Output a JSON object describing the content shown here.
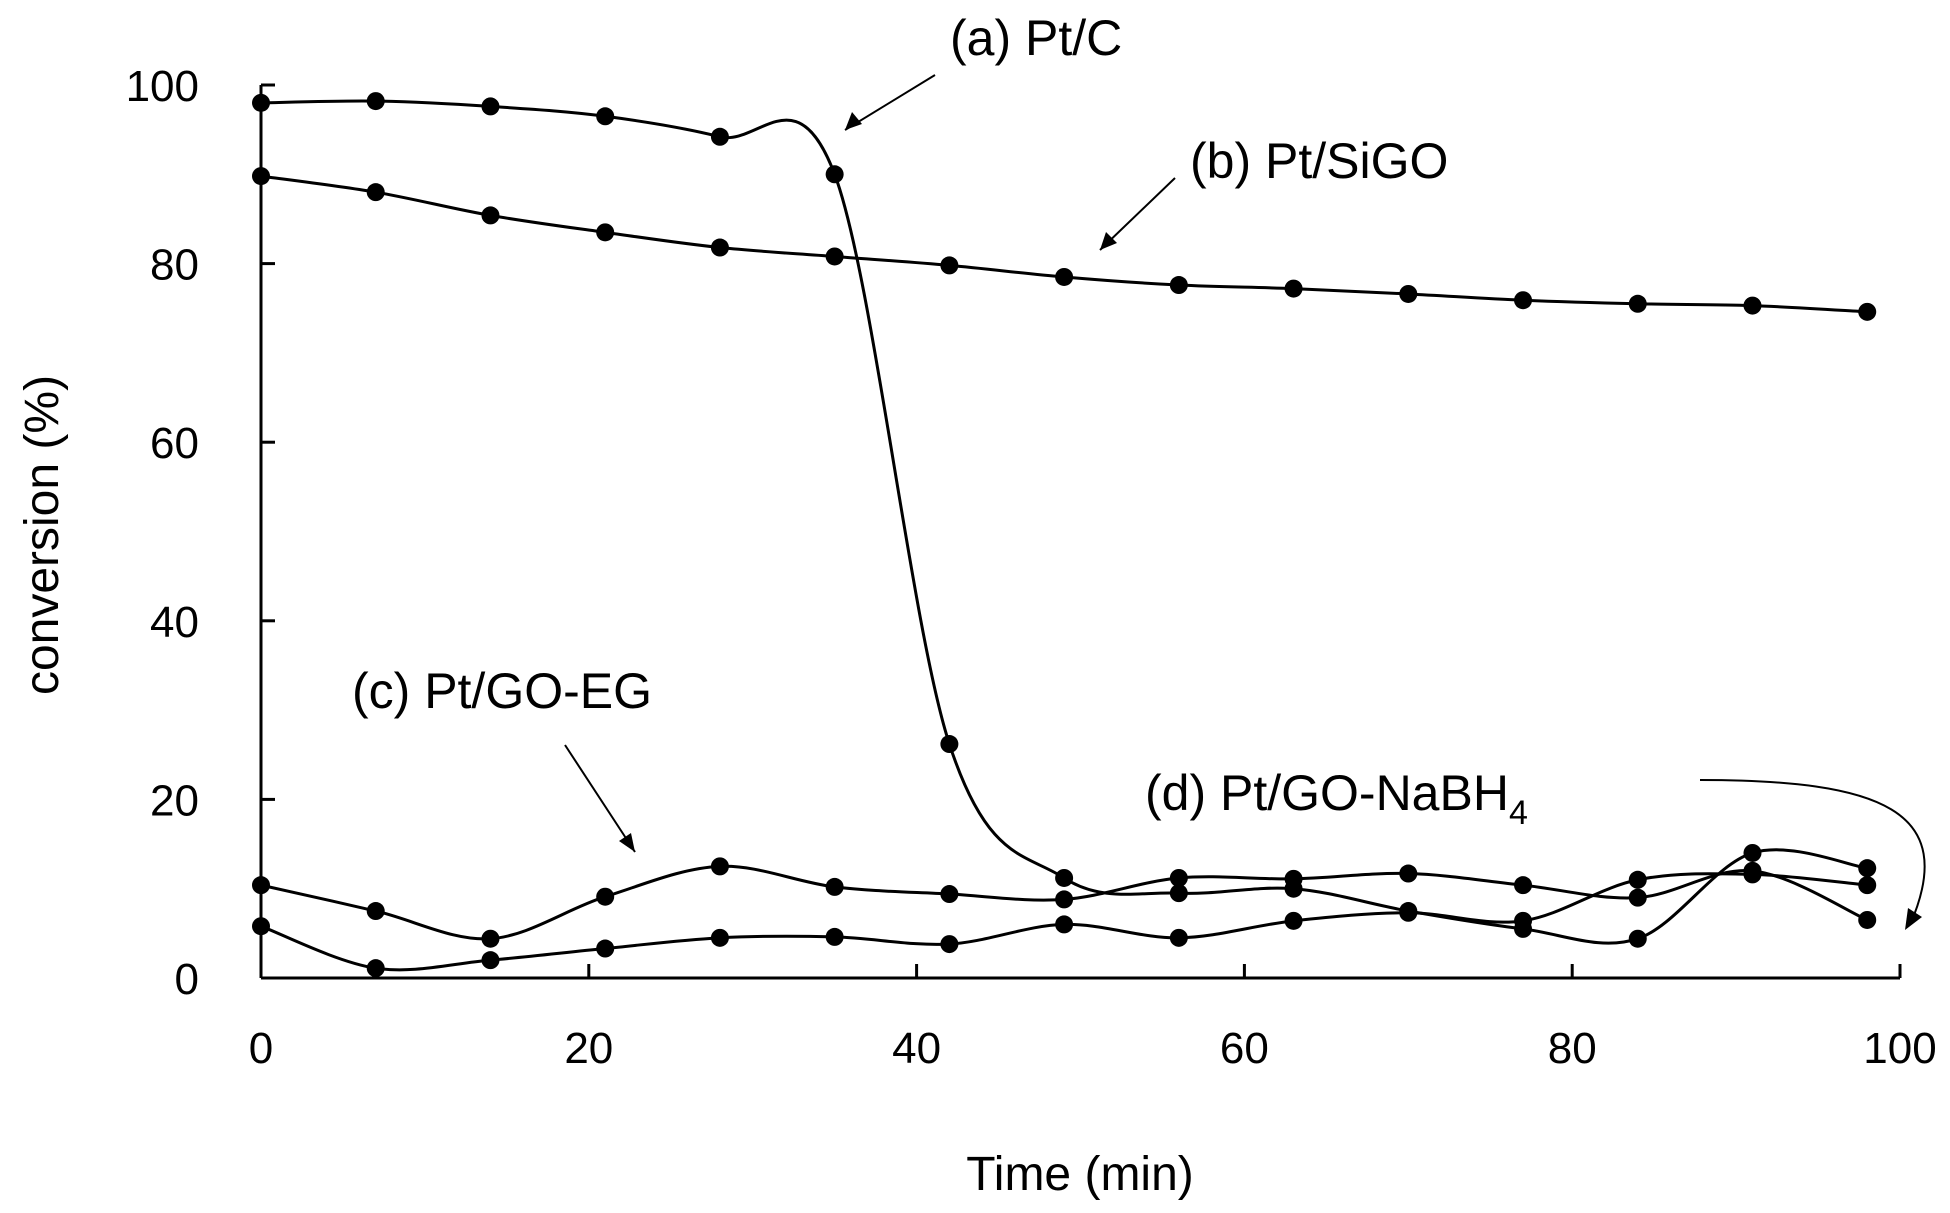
{
  "chart_data": {
    "type": "line",
    "title": "",
    "xlabel": "Time (min)",
    "ylabel": "conversion (%)",
    "xlim": [
      0,
      100
    ],
    "ylim": [
      0,
      100
    ],
    "xticks": [
      0,
      20,
      40,
      60,
      80,
      100
    ],
    "yticks": [
      0,
      20,
      40,
      60,
      80,
      100
    ],
    "grid": false,
    "legend": "none",
    "series": [
      {
        "name": "(a) Pt/C",
        "x": [
          0,
          7,
          14,
          21,
          28,
          35,
          42,
          49,
          56,
          63,
          70,
          77,
          84,
          91,
          98
        ],
        "y": [
          98,
          98.2,
          97.6,
          96.5,
          94.2,
          90,
          26.2,
          11.2,
          9.5,
          10,
          7.5,
          5.5,
          4.4,
          14,
          12.3
        ]
      },
      {
        "name": "(b) Pt/SiGO",
        "x": [
          0,
          7,
          14,
          21,
          28,
          35,
          42,
          49,
          56,
          63,
          70,
          77,
          84,
          91,
          98
        ],
        "y": [
          89.8,
          88,
          85.4,
          83.5,
          81.8,
          80.8,
          79.8,
          78.5,
          77.6,
          77.2,
          76.6,
          75.9,
          75.5,
          75.3,
          74.6
        ]
      },
      {
        "name": "(c) Pt/GO-EG",
        "x": [
          0,
          7,
          14,
          21,
          28,
          35,
          42,
          49,
          56,
          63,
          70,
          77,
          84,
          91,
          98
        ],
        "y": [
          5.8,
          1.1,
          2,
          3.3,
          4.5,
          4.6,
          3.8,
          6,
          4.5,
          6.4,
          7.3,
          6.4,
          11,
          11.6,
          10.4
        ]
      },
      {
        "name": "(d) Pt/GO-NaBH",
        "x": [
          0,
          7,
          14,
          21,
          28,
          35,
          42,
          49,
          56,
          63,
          70,
          77,
          84,
          91,
          98
        ],
        "y": [
          10.4,
          7.5,
          4.4,
          9.1,
          12.5,
          10.2,
          9.4,
          8.8,
          11.2,
          11.1,
          11.7,
          10.4,
          9,
          12,
          6.5
        ]
      }
    ],
    "annotations": [
      {
        "series": 0,
        "text": "(a) Pt/C"
      },
      {
        "series": 1,
        "text": "(b) Pt/SiGO"
      },
      {
        "series": 2,
        "text": "(c) Pt/GO-EG"
      },
      {
        "series": 3,
        "text": "(d) Pt/GO-NaBH",
        "subscript": "4"
      }
    ]
  }
}
